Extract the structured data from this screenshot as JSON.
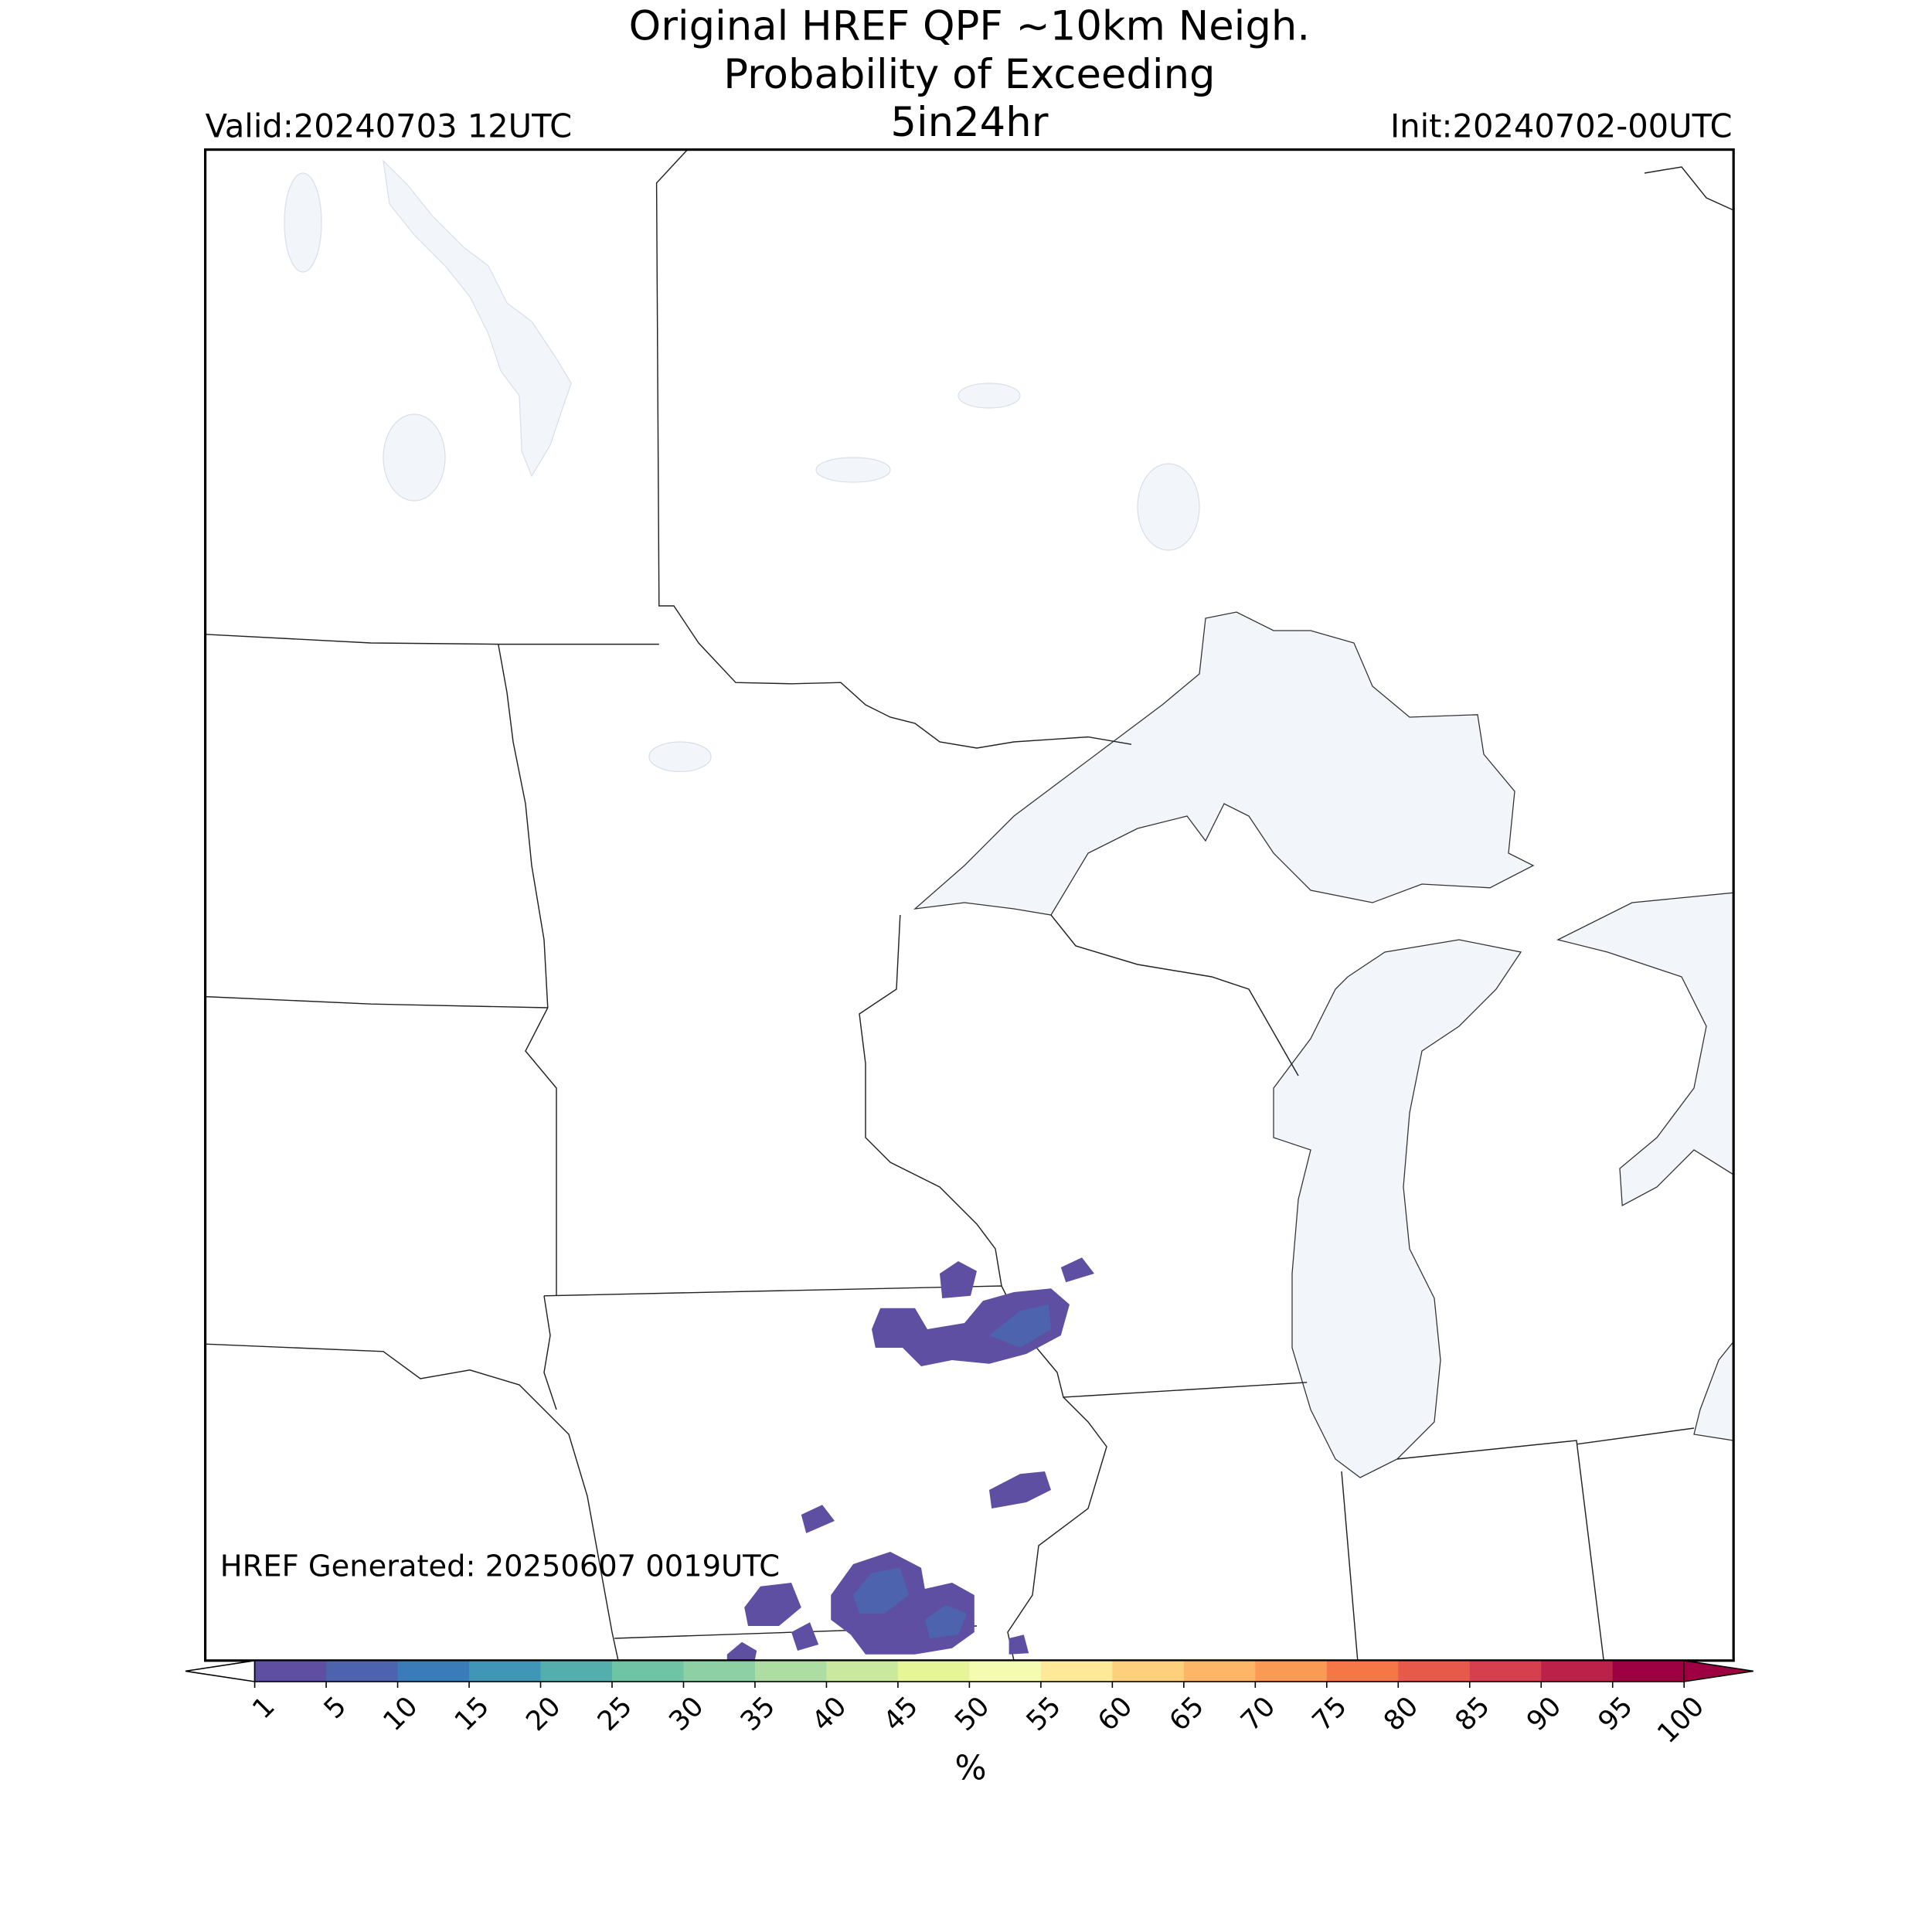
{
  "header": {
    "title_lines": [
      "Original HREF QPF ~10km Neigh.",
      "Probability of Exceeding",
      "5in24hr"
    ],
    "valid": "Valid:20240703 12UTC",
    "init": "Init:20240702-00UTC"
  },
  "footer": {
    "generated": "HREF Generated: 20250607 0019UTC"
  },
  "colorbar": {
    "ticks": [
      1,
      5,
      10,
      15,
      20,
      25,
      30,
      35,
      40,
      45,
      50,
      55,
      60,
      65,
      70,
      75,
      80,
      85,
      90,
      95,
      100
    ],
    "colors": [
      "#5e4fa2",
      "#4d63ad",
      "#3a7cb8",
      "#3f96b7",
      "#54aead",
      "#6ec4a4",
      "#8dd0a4",
      "#addda2",
      "#cbe99e",
      "#e6f598",
      "#f5fbb0",
      "#fee999",
      "#fed07e",
      "#fdb567",
      "#fb9a55",
      "#f57647",
      "#e75948",
      "#d6404e",
      "#bb2149",
      "#9e0142"
    ],
    "under_color": "#ffffff",
    "over_color": "#9e0142",
    "label": "%"
  }
}
